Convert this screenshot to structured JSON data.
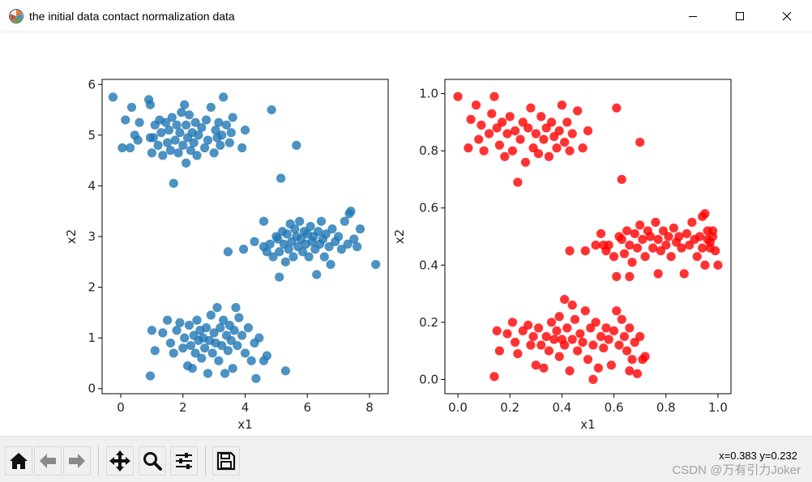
{
  "window": {
    "title": "the initial data contact normalization data",
    "app_icon": "matplotlib-icon",
    "controls": [
      "minimize-icon",
      "maximize-icon",
      "close-icon"
    ]
  },
  "chart_data": [
    {
      "type": "scatter",
      "title": "",
      "xlabel": "x1",
      "ylabel": "x2",
      "xlim": [
        -0.6,
        8.6
      ],
      "ylim": [
        -0.1,
        6.1
      ],
      "xticks": [
        "0",
        "2",
        "4",
        "6",
        "8"
      ],
      "yticks": [
        "0",
        "1",
        "2",
        "3",
        "4",
        "5",
        "6"
      ],
      "grid": false,
      "color": "#1f77b4",
      "points": [
        [
          -0.25,
          5.75
        ],
        [
          0.05,
          4.75
        ],
        [
          0.15,
          5.3
        ],
        [
          0.3,
          4.75
        ],
        [
          0.35,
          5.55
        ],
        [
          0.45,
          5.0
        ],
        [
          0.55,
          4.9
        ],
        [
          0.6,
          5.25
        ],
        [
          0.9,
          5.7
        ],
        [
          0.95,
          5.6
        ],
        [
          0.95,
          4.95
        ],
        [
          1.0,
          4.65
        ],
        [
          1.05,
          4.95
        ],
        [
          1.1,
          5.2
        ],
        [
          1.2,
          4.8
        ],
        [
          1.25,
          5.3
        ],
        [
          1.3,
          5.05
        ],
        [
          1.35,
          4.6
        ],
        [
          1.45,
          5.25
        ],
        [
          1.5,
          4.85
        ],
        [
          1.55,
          5.1
        ],
        [
          1.6,
          4.7
        ],
        [
          1.65,
          5.35
        ],
        [
          1.7,
          4.05
        ],
        [
          1.75,
          4.9
        ],
        [
          1.8,
          5.2
        ],
        [
          1.85,
          4.65
        ],
        [
          1.9,
          5.05
        ],
        [
          1.95,
          5.45
        ],
        [
          2.0,
          4.8
        ],
        [
          2.05,
          5.6
        ],
        [
          2.1,
          4.45
        ],
        [
          2.1,
          5.2
        ],
        [
          2.15,
          4.95
        ],
        [
          2.2,
          5.4
        ],
        [
          2.25,
          4.7
        ],
        [
          2.3,
          5.05
        ],
        [
          2.35,
          4.85
        ],
        [
          2.4,
          5.25
        ],
        [
          2.45,
          4.6
        ],
        [
          2.5,
          5.0
        ],
        [
          2.6,
          5.15
        ],
        [
          2.7,
          4.75
        ],
        [
          2.75,
          5.3
        ],
        [
          2.8,
          4.9
        ],
        [
          2.9,
          5.55
        ],
        [
          3.0,
          4.65
        ],
        [
          3.05,
          5.1
        ],
        [
          3.1,
          4.95
        ],
        [
          3.15,
          5.25
        ],
        [
          3.2,
          4.8
        ],
        [
          3.25,
          5.0
        ],
        [
          3.3,
          5.75
        ],
        [
          3.4,
          5.2
        ],
        [
          3.5,
          4.85
        ],
        [
          3.55,
          5.05
        ],
        [
          3.6,
          5.35
        ],
        [
          3.9,
          4.75
        ],
        [
          4.0,
          5.1
        ],
        [
          4.85,
          5.5
        ],
        [
          5.15,
          4.15
        ],
        [
          5.65,
          4.8
        ],
        [
          4.6,
          3.3
        ],
        [
          5.1,
          2.2
        ],
        [
          4.7,
          2.7
        ],
        [
          3.45,
          2.7
        ],
        [
          3.95,
          2.75
        ],
        [
          4.3,
          2.9
        ],
        [
          4.6,
          2.8
        ],
        [
          4.8,
          2.85
        ],
        [
          4.9,
          2.6
        ],
        [
          5.0,
          3.0
        ],
        [
          5.05,
          2.95
        ],
        [
          5.1,
          2.7
        ],
        [
          5.2,
          3.1
        ],
        [
          5.25,
          2.85
        ],
        [
          5.3,
          2.5
        ],
        [
          5.35,
          3.05
        ],
        [
          5.4,
          2.75
        ],
        [
          5.45,
          3.25
        ],
        [
          5.5,
          2.9
        ],
        [
          5.55,
          2.6
        ],
        [
          5.6,
          3.15
        ],
        [
          5.65,
          3.0
        ],
        [
          5.7,
          2.8
        ],
        [
          5.75,
          3.3
        ],
        [
          5.8,
          2.95
        ],
        [
          5.85,
          2.7
        ],
        [
          5.9,
          3.1
        ],
        [
          5.95,
          2.85
        ],
        [
          6.0,
          3.05
        ],
        [
          6.05,
          2.6
        ],
        [
          6.1,
          3.2
        ],
        [
          6.15,
          2.9
        ],
        [
          6.2,
          3.0
        ],
        [
          6.25,
          2.75
        ],
        [
          6.3,
          2.25
        ],
        [
          6.35,
          3.1
        ],
        [
          6.4,
          2.85
        ],
        [
          6.45,
          3.3
        ],
        [
          6.5,
          2.95
        ],
        [
          6.55,
          2.6
        ],
        [
          6.6,
          3.05
        ],
        [
          6.7,
          2.8
        ],
        [
          6.75,
          2.45
        ],
        [
          6.8,
          3.15
        ],
        [
          6.9,
          2.9
        ],
        [
          7.0,
          3.0
        ],
        [
          7.1,
          2.75
        ],
        [
          7.2,
          3.3
        ],
        [
          7.3,
          2.85
        ],
        [
          7.35,
          3.45
        ],
        [
          7.4,
          3.5
        ],
        [
          7.5,
          2.95
        ],
        [
          7.6,
          2.8
        ],
        [
          7.7,
          3.15
        ],
        [
          8.2,
          2.45
        ],
        [
          0.95,
          0.25
        ],
        [
          1.0,
          1.15
        ],
        [
          1.1,
          0.75
        ],
        [
          1.35,
          1.1
        ],
        [
          1.5,
          1.35
        ],
        [
          1.6,
          0.9
        ],
        [
          1.7,
          0.7
        ],
        [
          1.8,
          1.15
        ],
        [
          1.9,
          1.3
        ],
        [
          2.0,
          0.8
        ],
        [
          2.05,
          1.0
        ],
        [
          2.15,
          0.45
        ],
        [
          2.2,
          1.25
        ],
        [
          2.25,
          0.85
        ],
        [
          2.3,
          0.4
        ],
        [
          2.35,
          1.05
        ],
        [
          2.4,
          0.7
        ],
        [
          2.45,
          1.35
        ],
        [
          2.5,
          0.95
        ],
        [
          2.55,
          1.15
        ],
        [
          2.6,
          0.6
        ],
        [
          2.65,
          1.0
        ],
        [
          2.7,
          0.8
        ],
        [
          2.75,
          1.2
        ],
        [
          2.8,
          0.3
        ],
        [
          2.85,
          0.95
        ],
        [
          2.9,
          1.45
        ],
        [
          2.95,
          0.7
        ],
        [
          3.0,
          1.1
        ],
        [
          3.05,
          0.9
        ],
        [
          3.1,
          1.6
        ],
        [
          3.15,
          0.55
        ],
        [
          3.2,
          1.2
        ],
        [
          3.25,
          0.85
        ],
        [
          3.3,
          1.35
        ],
        [
          3.35,
          0.3
        ],
        [
          3.4,
          1.05
        ],
        [
          3.45,
          0.75
        ],
        [
          3.5,
          1.25
        ],
        [
          3.55,
          0.95
        ],
        [
          3.6,
          0.4
        ],
        [
          3.65,
          1.15
        ],
        [
          3.7,
          1.6
        ],
        [
          3.75,
          0.85
        ],
        [
          3.8,
          1.4
        ],
        [
          3.9,
          1.05
        ],
        [
          4.0,
          0.7
        ],
        [
          4.1,
          1.2
        ],
        [
          4.2,
          0.55
        ],
        [
          4.3,
          0.9
        ],
        [
          4.35,
          0.2
        ],
        [
          4.45,
          1.0
        ],
        [
          4.6,
          0.55
        ],
        [
          4.7,
          0.65
        ],
        [
          5.3,
          0.35
        ]
      ]
    },
    {
      "type": "scatter",
      "title": "",
      "xlabel": "x1",
      "ylabel": "x2",
      "xlim": [
        -0.05,
        1.05
      ],
      "ylim": [
        -0.05,
        1.05
      ],
      "xticks": [
        "0.0",
        "0.2",
        "0.4",
        "0.6",
        "0.8",
        "1.0"
      ],
      "yticks": [
        "0.0",
        "0.2",
        "0.4",
        "0.6",
        "0.8",
        "1.0"
      ],
      "grid": false,
      "color": "#ff0000",
      "points": [
        [
          0.0,
          0.99
        ],
        [
          0.04,
          0.81
        ],
        [
          0.05,
          0.91
        ],
        [
          0.07,
          0.96
        ],
        [
          0.08,
          0.84
        ],
        [
          0.09,
          0.89
        ],
        [
          0.1,
          0.8
        ],
        [
          0.12,
          0.86
        ],
        [
          0.13,
          0.93
        ],
        [
          0.14,
          0.99
        ],
        [
          0.15,
          0.88
        ],
        [
          0.16,
          0.82
        ],
        [
          0.17,
          0.9
        ],
        [
          0.18,
          0.78
        ],
        [
          0.19,
          0.86
        ],
        [
          0.2,
          0.92
        ],
        [
          0.21,
          0.8
        ],
        [
          0.22,
          0.87
        ],
        [
          0.23,
          0.69
        ],
        [
          0.24,
          0.84
        ],
        [
          0.25,
          0.9
        ],
        [
          0.26,
          0.76
        ],
        [
          0.27,
          0.88
        ],
        [
          0.28,
          0.95
        ],
        [
          0.29,
          0.81
        ],
        [
          0.3,
          0.86
        ],
        [
          0.31,
          0.79
        ],
        [
          0.32,
          0.92
        ],
        [
          0.33,
          0.84
        ],
        [
          0.34,
          0.88
        ],
        [
          0.35,
          0.78
        ],
        [
          0.36,
          0.9
        ],
        [
          0.37,
          0.85
        ],
        [
          0.38,
          0.81
        ],
        [
          0.39,
          0.87
        ],
        [
          0.4,
          0.96
        ],
        [
          0.41,
          0.83
        ],
        [
          0.42,
          0.9
        ],
        [
          0.43,
          0.8
        ],
        [
          0.44,
          0.86
        ],
        [
          0.46,
          0.94
        ],
        [
          0.48,
          0.81
        ],
        [
          0.5,
          0.87
        ],
        [
          0.61,
          0.95
        ],
        [
          0.7,
          0.83
        ],
        [
          0.63,
          0.7
        ],
        [
          0.55,
          0.51
        ],
        [
          0.61,
          0.36
        ],
        [
          0.57,
          0.45
        ],
        [
          0.43,
          0.45
        ],
        [
          0.49,
          0.45
        ],
        [
          0.53,
          0.47
        ],
        [
          0.56,
          0.47
        ],
        [
          0.58,
          0.47
        ],
        [
          0.6,
          0.43
        ],
        [
          0.62,
          0.5
        ],
        [
          0.63,
          0.49
        ],
        [
          0.64,
          0.44
        ],
        [
          0.65,
          0.52
        ],
        [
          0.66,
          0.47
        ],
        [
          0.67,
          0.41
        ],
        [
          0.68,
          0.51
        ],
        [
          0.69,
          0.46
        ],
        [
          0.7,
          0.54
        ],
        [
          0.71,
          0.49
        ],
        [
          0.72,
          0.43
        ],
        [
          0.73,
          0.52
        ],
        [
          0.74,
          0.5
        ],
        [
          0.75,
          0.46
        ],
        [
          0.76,
          0.55
        ],
        [
          0.77,
          0.49
        ],
        [
          0.78,
          0.45
        ],
        [
          0.79,
          0.52
        ],
        [
          0.8,
          0.47
        ],
        [
          0.81,
          0.5
        ],
        [
          0.82,
          0.43
        ],
        [
          0.83,
          0.53
        ],
        [
          0.84,
          0.48
        ],
        [
          0.85,
          0.5
        ],
        [
          0.86,
          0.46
        ],
        [
          0.87,
          0.37
        ],
        [
          0.88,
          0.51
        ],
        [
          0.89,
          0.47
        ],
        [
          0.9,
          0.55
        ],
        [
          0.91,
          0.49
        ],
        [
          0.92,
          0.43
        ],
        [
          0.93,
          0.5
        ],
        [
          0.94,
          0.46
        ],
        [
          0.95,
          0.4
        ],
        [
          0.96,
          0.52
        ],
        [
          0.97,
          0.48
        ],
        [
          0.98,
          0.5
        ],
        [
          0.99,
          0.45
        ],
        [
          0.94,
          0.57
        ],
        [
          0.95,
          0.58
        ],
        [
          0.96,
          0.49
        ],
        [
          0.97,
          0.46
        ],
        [
          0.98,
          0.52
        ],
        [
          1.0,
          0.4
        ],
        [
          0.66,
          0.36
        ],
        [
          0.77,
          0.37
        ],
        [
          0.14,
          0.01
        ],
        [
          0.15,
          0.17
        ],
        [
          0.16,
          0.1
        ],
        [
          0.19,
          0.16
        ],
        [
          0.21,
          0.2
        ],
        [
          0.22,
          0.13
        ],
        [
          0.23,
          0.09
        ],
        [
          0.25,
          0.17
        ],
        [
          0.27,
          0.19
        ],
        [
          0.28,
          0.12
        ],
        [
          0.29,
          0.15
        ],
        [
          0.3,
          0.05
        ],
        [
          0.31,
          0.18
        ],
        [
          0.32,
          0.12
        ],
        [
          0.33,
          0.04
        ],
        [
          0.34,
          0.15
        ],
        [
          0.35,
          0.1
        ],
        [
          0.36,
          0.2
        ],
        [
          0.37,
          0.14
        ],
        [
          0.38,
          0.17
        ],
        [
          0.39,
          0.08
        ],
        [
          0.4,
          0.14
        ],
        [
          0.41,
          0.12
        ],
        [
          0.42,
          0.18
        ],
        [
          0.43,
          0.03
        ],
        [
          0.44,
          0.14
        ],
        [
          0.45,
          0.21
        ],
        [
          0.46,
          0.1
        ],
        [
          0.47,
          0.16
        ],
        [
          0.48,
          0.13
        ],
        [
          0.49,
          0.24
        ],
        [
          0.5,
          0.07
        ],
        [
          0.51,
          0.18
        ],
        [
          0.52,
          0.12
        ],
        [
          0.53,
          0.2
        ],
        [
          0.54,
          0.04
        ],
        [
          0.55,
          0.15
        ],
        [
          0.56,
          0.11
        ],
        [
          0.57,
          0.18
        ],
        [
          0.58,
          0.14
        ],
        [
          0.59,
          0.05
        ],
        [
          0.6,
          0.17
        ],
        [
          0.61,
          0.24
        ],
        [
          0.62,
          0.12
        ],
        [
          0.63,
          0.21
        ],
        [
          0.64,
          0.15
        ],
        [
          0.65,
          0.1
        ],
        [
          0.66,
          0.18
        ],
        [
          0.67,
          0.07
        ],
        [
          0.68,
          0.13
        ],
        [
          0.69,
          0.02
        ],
        [
          0.7,
          0.15
        ],
        [
          0.71,
          0.07
        ],
        [
          0.72,
          0.08
        ],
        [
          0.66,
          0.03
        ],
        [
          0.41,
          0.28
        ],
        [
          0.44,
          0.26
        ],
        [
          0.39,
          0.22
        ],
        [
          0.52,
          0.0
        ]
      ]
    }
  ],
  "toolbar": {
    "buttons": [
      {
        "name": "home-icon",
        "glyph": "⌂"
      },
      {
        "name": "back-icon",
        "glyph": "←"
      },
      {
        "name": "forward-icon",
        "glyph": "→"
      },
      {
        "name": "pan-icon",
        "glyph": "✥"
      },
      {
        "name": "zoom-icon",
        "glyph": "🔍"
      },
      {
        "name": "configure-subplots-icon",
        "glyph": "☰"
      },
      {
        "name": "save-icon",
        "glyph": "💾"
      }
    ],
    "coords": "x=0.383 y=0.232",
    "watermark": "CSDN @万有引力Joker"
  }
}
